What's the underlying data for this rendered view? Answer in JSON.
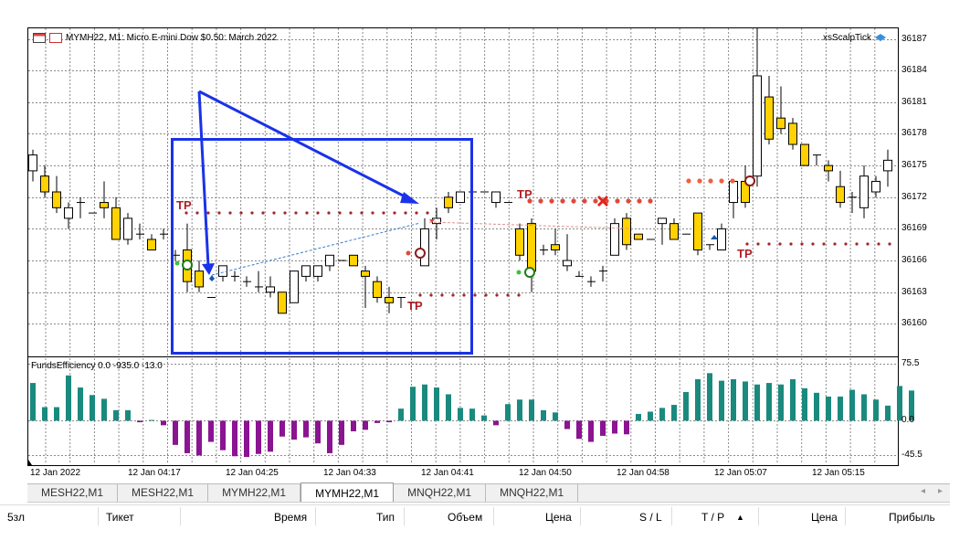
{
  "window": {
    "title": "MYMH22, M1:  Micro E-mini Dow $0.50: March 2022",
    "expert_name": "xsScalpTick",
    "indicator_label": "FundsEfficiency 0.0 -935.0 -13.0"
  },
  "price_axis": [
    "36187",
    "36184",
    "36181",
    "36178",
    "36175",
    "36172",
    "36169",
    "36166",
    "36163",
    "36160"
  ],
  "indicator_axis": [
    "75.5",
    "0.0",
    "-45.5"
  ],
  "time_axis": [
    "12 Jan 2022",
    "12 Jan 04:17",
    "12 Jan 04:25",
    "12 Jan 04:33",
    "12 Jan 04:41",
    "12 Jan 04:50",
    "12 Jan 04:58",
    "12 Jan 05:07",
    "12 Jan 05:15"
  ],
  "tp_labels": [
    "TP",
    "TP",
    "TP",
    "TP"
  ],
  "tabs": [
    {
      "label": "MESH22,M1",
      "active": false
    },
    {
      "label": "MESH22,M1",
      "active": false
    },
    {
      "label": "MYMH22,M1",
      "active": false
    },
    {
      "label": "MYMH22,M1",
      "active": true
    },
    {
      "label": "MNQH22,M1",
      "active": false
    },
    {
      "label": "MNQH22,M1",
      "active": false
    }
  ],
  "tab_nav": {
    "left": "◂",
    "right": "▸"
  },
  "columns": {
    "symbol": "5зл",
    "ticket": "Тикет",
    "time": "Время",
    "type": "Тип",
    "volume": "Объем",
    "price": "Цена",
    "sl": "S / L",
    "tp": "T / P",
    "sort": "▲",
    "price2": "Цена",
    "profit": "Прибыль"
  },
  "chart_data": {
    "type": "candlestick",
    "price_range": [
      36157,
      36188
    ],
    "candles": [
      {
        "o": 36174.5,
        "h": 36176.5,
        "l": 36173.5,
        "c": 36176.0
      },
      {
        "o": 36174.0,
        "h": 36175.0,
        "l": 36172.0,
        "c": 36172.5
      },
      {
        "o": 36172.5,
        "h": 36174.0,
        "l": 36170.5,
        "c": 36171.0
      },
      {
        "o": 36170.0,
        "h": 36171.5,
        "l": 36169.0,
        "c": 36171.0
      },
      {
        "o": 36171.5,
        "h": 36172.0,
        "l": 36170.0,
        "c": 36171.5
      },
      {
        "o": 36170.5,
        "h": 36170.5,
        "l": 36170.5,
        "c": 36170.5
      },
      {
        "o": 36171.5,
        "h": 36173.5,
        "l": 36170.0,
        "c": 36171.0
      },
      {
        "o": 36171.0,
        "h": 36172.0,
        "l": 36168.0,
        "c": 36168.0
      },
      {
        "o": 36168.0,
        "h": 36170.5,
        "l": 36167.5,
        "c": 36170.0
      },
      {
        "o": 36168.5,
        "h": 36169.5,
        "l": 36168.0,
        "c": 36168.5
      },
      {
        "o": 36168.0,
        "h": 36168.5,
        "l": 36167.0,
        "c": 36167.0
      },
      {
        "o": 36168.5,
        "h": 36169.0,
        "l": 36168.0,
        "c": 36168.5
      },
      {
        "o": 36166.5,
        "h": 36167.0,
        "l": 36166.0,
        "c": 36166.5
      },
      {
        "o": 36167.0,
        "h": 36169.5,
        "l": 36163.0,
        "c": 36164.0
      },
      {
        "o": 36165.0,
        "h": 36166.0,
        "l": 36163.0,
        "c": 36163.5
      },
      {
        "o": 36162.5,
        "h": 36162.5,
        "l": 36162.5,
        "c": 36162.5
      },
      {
        "o": 36164.5,
        "h": 36165.5,
        "l": 36164.0,
        "c": 36165.5
      },
      {
        "o": 36164.5,
        "h": 36165.0,
        "l": 36164.0,
        "c": 36164.5
      },
      {
        "o": 36164.0,
        "h": 36164.5,
        "l": 36163.5,
        "c": 36164.0
      },
      {
        "o": 36163.5,
        "h": 36165.0,
        "l": 36163.0,
        "c": 36163.5
      },
      {
        "o": 36163.0,
        "h": 36164.5,
        "l": 36162.5,
        "c": 36163.5
      },
      {
        "o": 36163.0,
        "h": 36163.0,
        "l": 36161.0,
        "c": 36161.0
      },
      {
        "o": 36162.0,
        "h": 36165.0,
        "l": 36162.0,
        "c": 36165.0
      },
      {
        "o": 36164.5,
        "h": 36165.5,
        "l": 36164.0,
        "c": 36165.5
      },
      {
        "o": 36164.5,
        "h": 36165.5,
        "l": 36164.0,
        "c": 36165.5
      },
      {
        "o": 36165.5,
        "h": 36166.5,
        "l": 36165.0,
        "c": 36166.5
      },
      {
        "o": 36166.0,
        "h": 36166.0,
        "l": 36166.0,
        "c": 36166.0
      },
      {
        "o": 36166.5,
        "h": 36166.5,
        "l": 36165.5,
        "c": 36165.5
      },
      {
        "o": 36165.0,
        "h": 36165.5,
        "l": 36161.5,
        "c": 36164.5
      },
      {
        "o": 36164.0,
        "h": 36164.5,
        "l": 36162.0,
        "c": 36162.5
      },
      {
        "o": 36162.5,
        "h": 36163.5,
        "l": 36161.0,
        "c": 36162.0
      },
      {
        "o": 36162.5,
        "h": 36162.5,
        "l": 36161.5,
        "c": 36162.5
      },
      {
        "o": 36162.0,
        "h": 36162.0,
        "l": 36162.0,
        "c": 36162.0
      },
      {
        "o": 36165.5,
        "h": 36170.0,
        "l": 36165.5,
        "c": 36169.0
      },
      {
        "o": 36169.5,
        "h": 36171.0,
        "l": 36168.0,
        "c": 36170.0
      },
      {
        "o": 36172.0,
        "h": 36172.5,
        "l": 36170.5,
        "c": 36171.0
      },
      {
        "o": 36171.5,
        "h": 36172.5,
        "l": 36171.5,
        "c": 36172.5
      },
      {
        "o": 36172.5,
        "h": 36172.5,
        "l": 36172.5,
        "c": 36172.5
      },
      {
        "o": 36172.5,
        "h": 36172.5,
        "l": 36172.5,
        "c": 36172.5
      },
      {
        "o": 36171.5,
        "h": 36172.5,
        "l": 36171.0,
        "c": 36172.5
      },
      {
        "o": 36171.5,
        "h": 36171.5,
        "l": 36171.5,
        "c": 36171.5
      },
      {
        "o": 36169.0,
        "h": 36169.5,
        "l": 36166.0,
        "c": 36166.5
      },
      {
        "o": 36169.5,
        "h": 36170.0,
        "l": 36163.0,
        "c": 36165.0
      },
      {
        "o": 36167.0,
        "h": 36167.5,
        "l": 36166.5,
        "c": 36167.0
      },
      {
        "o": 36167.5,
        "h": 36169.0,
        "l": 36166.5,
        "c": 36167.0
      },
      {
        "o": 36165.5,
        "h": 36168.5,
        "l": 36165.0,
        "c": 36166.0
      },
      {
        "o": 36164.5,
        "h": 36165.0,
        "l": 36164.5,
        "c": 36164.5
      },
      {
        "o": 36164.0,
        "h": 36164.5,
        "l": 36163.5,
        "c": 36164.0
      },
      {
        "o": 36165.0,
        "h": 36165.5,
        "l": 36164.0,
        "c": 36165.0
      },
      {
        "o": 36166.5,
        "h": 36170.0,
        "l": 36166.5,
        "c": 36169.5
      },
      {
        "o": 36170.0,
        "h": 36170.5,
        "l": 36167.0,
        "c": 36167.5
      },
      {
        "o": 36168.5,
        "h": 36168.5,
        "l": 36168.0,
        "c": 36168.0
      },
      {
        "o": 36168.0,
        "h": 36168.0,
        "l": 36168.0,
        "c": 36168.0
      },
      {
        "o": 36169.5,
        "h": 36170.0,
        "l": 36167.5,
        "c": 36170.0
      },
      {
        "o": 36169.5,
        "h": 36170.0,
        "l": 36168.0,
        "c": 36168.0
      },
      {
        "o": 36168.5,
        "h": 36168.5,
        "l": 36168.5,
        "c": 36168.5
      },
      {
        "o": 36170.5,
        "h": 36170.5,
        "l": 36166.5,
        "c": 36167.0
      },
      {
        "o": 36167.5,
        "h": 36167.5,
        "l": 36167.0,
        "c": 36167.5
      },
      {
        "o": 36167.0,
        "h": 36169.5,
        "l": 36167.0,
        "c": 36169.0
      },
      {
        "o": 36171.5,
        "h": 36173.5,
        "l": 36170.0,
        "c": 36173.5
      },
      {
        "o": 36173.5,
        "h": 36175.0,
        "l": 36171.0,
        "c": 36171.5
      },
      {
        "o": 36174.0,
        "h": 36188.0,
        "l": 36173.0,
        "c": 36183.5
      },
      {
        "o": 36181.5,
        "h": 36183.5,
        "l": 36177.0,
        "c": 36177.5
      },
      {
        "o": 36179.5,
        "h": 36182.5,
        "l": 36178.0,
        "c": 36178.5
      },
      {
        "o": 36179.0,
        "h": 36179.5,
        "l": 36176.5,
        "c": 36177.0
      },
      {
        "o": 36177.0,
        "h": 36177.0,
        "l": 36175.0,
        "c": 36175.0
      },
      {
        "o": 36176.0,
        "h": 36176.0,
        "l": 36175.0,
        "c": 36176.0
      },
      {
        "o": 36175.0,
        "h": 36175.5,
        "l": 36173.5,
        "c": 36174.5
      },
      {
        "o": 36173.0,
        "h": 36174.5,
        "l": 36171.0,
        "c": 36171.5
      },
      {
        "o": 36172.0,
        "h": 36172.5,
        "l": 36170.5,
        "c": 36172.0
      },
      {
        "o": 36171.0,
        "h": 36175.0,
        "l": 36170.0,
        "c": 36174.0
      },
      {
        "o": 36172.5,
        "h": 36174.0,
        "l": 36172.0,
        "c": 36173.5
      },
      {
        "o": 36174.5,
        "h": 36176.5,
        "l": 36173.0,
        "c": 36175.5
      }
    ],
    "indicator": {
      "name": "FundsEfficiency",
      "range": [
        -45.5,
        75.5
      ],
      "bars": [
        50,
        18,
        18,
        60,
        44,
        34,
        29,
        14,
        14,
        -2,
        1,
        -6,
        -32,
        -43,
        -46,
        -28,
        -39,
        -47,
        -48,
        -44,
        -41,
        -21,
        -25,
        -22,
        -30,
        -43,
        -32,
        -14,
        -12,
        -3,
        -2,
        16,
        45,
        48,
        44,
        35,
        17,
        16,
        7,
        -6,
        22,
        28,
        28,
        14,
        11,
        -11,
        -24,
        -28,
        -20,
        -17,
        -18,
        9,
        12,
        17,
        21,
        38,
        55,
        63,
        53,
        55,
        52,
        48,
        50,
        48,
        55,
        43,
        37,
        32,
        32,
        41,
        35,
        28,
        20,
        46,
        40
      ]
    }
  }
}
